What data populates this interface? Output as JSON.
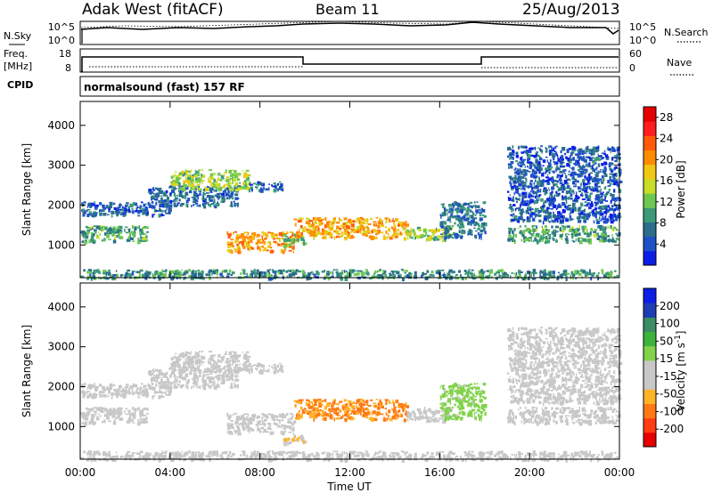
{
  "header": {
    "site": "Adak West (fitACF)",
    "beam": "Beam 11",
    "date": "25/Aug/2013"
  },
  "left_labels": {
    "nsky": "N.Sky",
    "freq_line1": "Freq.",
    "freq_line2": "[MHz]",
    "cpid": "CPID"
  },
  "right_labels": {
    "nsearch": "N.Search",
    "nave": "Nave"
  },
  "noise_ticks_left": [
    "10^5",
    "10^0"
  ],
  "noise_ticks_right": [
    "10^5",
    "10^0"
  ],
  "freq_ticks_left": [
    "18",
    "8"
  ],
  "freq_ticks_right": [
    "60",
    "0"
  ],
  "cpid_text": "normalsound (fast) 157 RF",
  "colors": {
    "power_scale": [
      "#0a1ee6",
      "#1e50c8",
      "#2a6e8c",
      "#3c9a78",
      "#6ec850",
      "#c8dc28",
      "#f0c814",
      "#ff8c00",
      "#ff5a0a",
      "#ff1e1e",
      "#e60000"
    ],
    "velocity_scale": [
      "#e60000",
      "#ff3c14",
      "#ff7814",
      "#ffb428",
      "#c8c8c8",
      "#c8c8c8",
      "#82d24b",
      "#3cb43c",
      "#3c8c64",
      "#1e3cb4",
      "#0a1ee6"
    ]
  },
  "chart_data": [
    {
      "type": "heatmap",
      "title": "Power",
      "xlabel": "Time UT",
      "ylabel": "Slant Range [km]",
      "x_ticks": [
        "00:00",
        "04:00",
        "08:00",
        "12:00",
        "16:00",
        "20:00",
        "00:00"
      ],
      "y_ticks": [
        "1000",
        "2000",
        "3000",
        "4000"
      ],
      "xlim_hours": [
        0,
        24
      ],
      "ylim_km": [
        180,
        4600
      ],
      "colorbar": {
        "label": "Power [dB]",
        "ticks": [
          "4",
          "8",
          "12",
          "16",
          "20",
          "24",
          "28"
        ],
        "range": [
          0,
          30
        ]
      },
      "echo_regions": [
        {
          "t_start": 0.0,
          "t_end": 3.0,
          "r_min": 1100,
          "r_max": 1500,
          "value": 10
        },
        {
          "t_start": 0.0,
          "t_end": 4.0,
          "r_min": 1750,
          "r_max": 2100,
          "value": 6
        },
        {
          "t_start": 3.0,
          "t_end": 7.0,
          "r_min": 2000,
          "r_max": 2500,
          "value": 6
        },
        {
          "t_start": 4.0,
          "t_end": 7.5,
          "r_min": 2400,
          "r_max": 2900,
          "value": 14
        },
        {
          "t_start": 7.5,
          "t_end": 9.0,
          "r_min": 2400,
          "r_max": 2600,
          "value": 6
        },
        {
          "t_start": 6.5,
          "t_end": 9.5,
          "r_min": 850,
          "r_max": 1350,
          "value": 20
        },
        {
          "t_start": 9.0,
          "t_end": 10.0,
          "r_min": 1000,
          "r_max": 1300,
          "value": 12
        },
        {
          "t_start": 9.5,
          "t_end": 14.5,
          "r_min": 1200,
          "r_max": 1700,
          "value": 19
        },
        {
          "t_start": 14.5,
          "t_end": 16.5,
          "r_min": 1150,
          "r_max": 1500,
          "value": 14
        },
        {
          "t_start": 16.0,
          "t_end": 18.0,
          "r_min": 1200,
          "r_max": 2100,
          "value": 7
        },
        {
          "t_start": 19.0,
          "t_end": 24.0,
          "r_min": 1100,
          "r_max": 1500,
          "value": 10
        },
        {
          "t_start": 19.0,
          "t_end": 24.0,
          "r_min": 1600,
          "r_max": 3500,
          "value": 5
        },
        {
          "t_start": 0.0,
          "t_end": 24.0,
          "r_min": 180,
          "r_max": 400,
          "value": 9
        }
      ]
    },
    {
      "type": "heatmap",
      "title": "Velocity",
      "xlabel": "Time UT",
      "ylabel": "Slant Range [km]",
      "x_ticks": [
        "00:00",
        "04:00",
        "08:00",
        "12:00",
        "16:00",
        "20:00",
        "00:00"
      ],
      "y_ticks": [
        "1000",
        "2000",
        "3000",
        "4000"
      ],
      "xlim_hours": [
        0,
        24
      ],
      "ylim_km": [
        180,
        4600
      ],
      "colorbar": {
        "label": "Velocity [m s^-1]",
        "ticks": [
          "200",
          "100",
          "50",
          "15",
          "-15",
          "-50",
          "-100",
          "-200"
        ],
        "range": [
          -250,
          250
        ]
      },
      "echo_regions": [
        {
          "t_start": 0.0,
          "t_end": 3.0,
          "r_min": 1100,
          "r_max": 1500,
          "value": 0
        },
        {
          "t_start": 0.0,
          "t_end": 4.0,
          "r_min": 1750,
          "r_max": 2100,
          "value": 0
        },
        {
          "t_start": 3.0,
          "t_end": 7.0,
          "r_min": 2000,
          "r_max": 2500,
          "value": 0
        },
        {
          "t_start": 4.0,
          "t_end": 7.5,
          "r_min": 2400,
          "r_max": 2900,
          "value": 0
        },
        {
          "t_start": 7.5,
          "t_end": 9.0,
          "r_min": 2400,
          "r_max": 2600,
          "value": 0
        },
        {
          "t_start": 6.5,
          "t_end": 9.5,
          "r_min": 850,
          "r_max": 1350,
          "value": -5
        },
        {
          "t_start": 9.0,
          "t_end": 10.0,
          "r_min": 600,
          "r_max": 800,
          "value": -60
        },
        {
          "t_start": 9.5,
          "t_end": 14.5,
          "r_min": 1200,
          "r_max": 1700,
          "value": -120
        },
        {
          "t_start": 14.5,
          "t_end": 16.5,
          "r_min": 1150,
          "r_max": 1500,
          "value": 0
        },
        {
          "t_start": 16.0,
          "t_end": 18.0,
          "r_min": 1200,
          "r_max": 2100,
          "value": 40
        },
        {
          "t_start": 19.0,
          "t_end": 24.0,
          "r_min": 1100,
          "r_max": 1500,
          "value": 0
        },
        {
          "t_start": 19.0,
          "t_end": 24.0,
          "r_min": 1600,
          "r_max": 3500,
          "value": 0
        },
        {
          "t_start": 0.0,
          "t_end": 24.0,
          "r_min": 180,
          "r_max": 400,
          "value": -30
        }
      ]
    }
  ]
}
